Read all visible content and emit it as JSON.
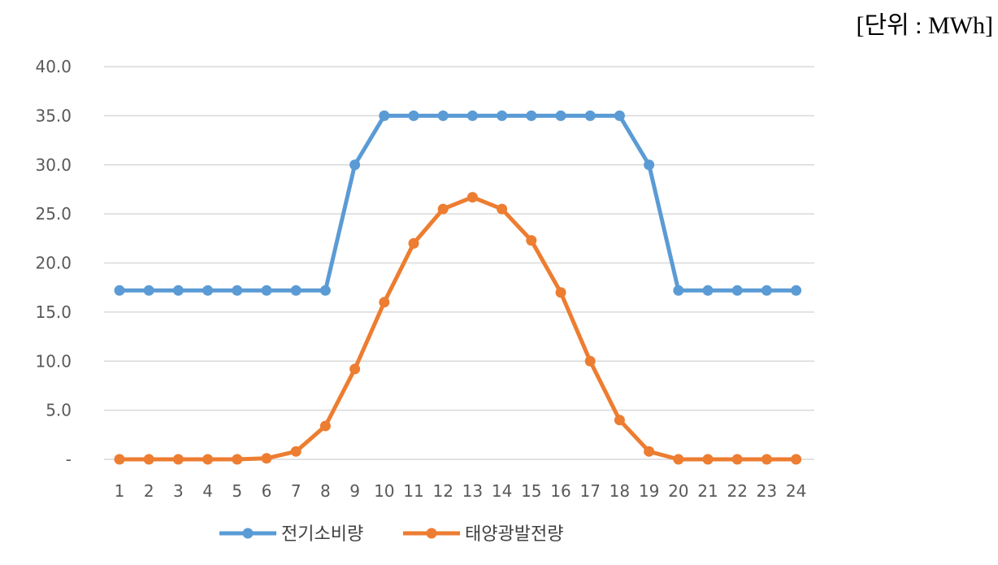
{
  "unit_label": "[단위 : MWh]",
  "chart_data": {
    "type": "line",
    "x": [
      1,
      2,
      3,
      4,
      5,
      6,
      7,
      8,
      9,
      10,
      11,
      12,
      13,
      14,
      15,
      16,
      17,
      18,
      19,
      20,
      21,
      22,
      23,
      24
    ],
    "ylim": [
      0,
      40
    ],
    "yticks": [
      0,
      5,
      10,
      15,
      20,
      25,
      30,
      35,
      40
    ],
    "ytick_labels": [
      "-",
      "5.0",
      "10.0",
      "15.0",
      "20.0",
      "25.0",
      "30.0",
      "35.0",
      "40.0"
    ],
    "grid": true,
    "legend_position": "bottom",
    "series": [
      {
        "name": "전기소비량",
        "color": "#5B9BD5",
        "values": [
          17.2,
          17.2,
          17.2,
          17.2,
          17.2,
          17.2,
          17.2,
          17.2,
          30,
          35,
          35,
          35,
          35,
          35,
          35,
          35,
          35,
          35,
          30,
          17.2,
          17.2,
          17.2,
          17.2,
          17.2
        ]
      },
      {
        "name": "태양광발전량",
        "color": "#ED7D31",
        "values": [
          0,
          0,
          0,
          0,
          0,
          0.1,
          0.8,
          3.4,
          9.2,
          16,
          22,
          25.5,
          26.7,
          25.5,
          22.3,
          17,
          10,
          4,
          0.8,
          0,
          0,
          0,
          0,
          0
        ]
      }
    ]
  }
}
